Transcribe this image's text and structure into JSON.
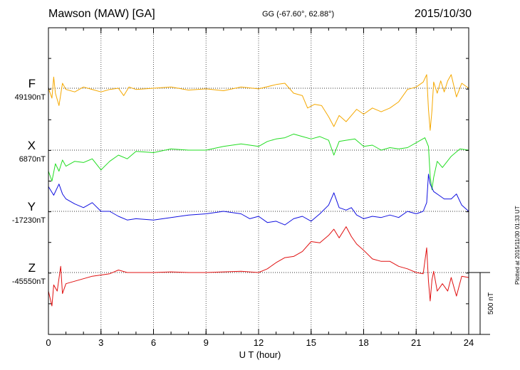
{
  "header": {
    "station": "Mawson (MAW)  [GA]",
    "coords": "GG (-67.60°,  62.88°)",
    "date": "2015/10/30"
  },
  "footer": {
    "credit": "Plotted at 2015/11/30 01:33 UT"
  },
  "colors": {
    "F": "#f5a800",
    "X": "#22dd22",
    "Y": "#1010e0",
    "Z": "#e01010"
  },
  "chart_data": {
    "type": "line",
    "title": "Mawson (MAW)  [GA]",
    "xlabel": "U T (hour)",
    "ylabel": "",
    "xlim": [
      0,
      24
    ],
    "xticks": [
      "0",
      "3",
      "6",
      "9",
      "12",
      "15",
      "18",
      "21",
      "24"
    ],
    "grid": true,
    "scale_bar": {
      "label": "500 nT",
      "value_nT": 500
    },
    "series": [
      {
        "name": "F",
        "baseline_label": "49190nT",
        "baseline": 49190,
        "x": [
          0,
          0.2,
          0.3,
          0.4,
          0.6,
          0.8,
          1,
          1.5,
          2,
          3,
          3.5,
          4,
          4.3,
          4.6,
          5,
          6,
          7,
          8,
          9,
          10,
          11,
          12,
          13,
          13.5,
          14,
          14.5,
          14.8,
          15.2,
          15.6,
          16,
          16.3,
          16.6,
          17,
          17.3,
          17.6,
          18,
          18.5,
          19,
          19.5,
          20,
          20.5,
          21,
          21.4,
          21.6,
          21.7,
          21.8,
          21.9,
          22,
          22.2,
          22.4,
          22.6,
          22.8,
          23,
          23.3,
          23.6,
          24
        ],
        "values": [
          49190,
          49110,
          49280,
          49150,
          49050,
          49230,
          49180,
          49160,
          49200,
          49160,
          49180,
          49190,
          49130,
          49200,
          49180,
          49190,
          49200,
          49175,
          49185,
          49170,
          49200,
          49185,
          49220,
          49230,
          49150,
          49130,
          49030,
          49060,
          49050,
          48960,
          48880,
          48970,
          48920,
          48970,
          49020,
          48980,
          49030,
          49000,
          49030,
          49080,
          49180,
          49200,
          49240,
          49300,
          49020,
          48850,
          49010,
          49240,
          49150,
          49250,
          49160,
          49250,
          49300,
          49120,
          49230,
          49190
        ]
      },
      {
        "name": "X",
        "baseline_label": "6870nT",
        "baseline": 6870,
        "x": [
          0,
          0.2,
          0.4,
          0.6,
          0.8,
          1,
          1.5,
          2,
          2.5,
          3,
          3.5,
          4,
          4.5,
          5,
          6,
          7,
          8,
          9,
          10,
          11,
          12,
          12.5,
          13,
          13.5,
          14,
          14.5,
          15,
          15.5,
          16,
          16.3,
          16.6,
          17,
          17.5,
          18,
          18.5,
          19,
          19.5,
          20,
          20.5,
          21,
          21.5,
          21.7,
          21.8,
          21.9,
          22,
          22.2,
          22.5,
          23,
          23.5,
          24
        ],
        "values": [
          6700,
          6620,
          6760,
          6700,
          6790,
          6740,
          6780,
          6770,
          6800,
          6710,
          6780,
          6830,
          6800,
          6860,
          6850,
          6880,
          6870,
          6870,
          6900,
          6920,
          6900,
          6940,
          6960,
          6970,
          7000,
          6980,
          6960,
          6980,
          6950,
          6830,
          6940,
          6950,
          6960,
          6900,
          6910,
          6870,
          6890,
          6880,
          6890,
          6930,
          6970,
          6900,
          6660,
          6550,
          6650,
          6780,
          6730,
          6820,
          6880,
          6870
        ]
      },
      {
        "name": "Y",
        "baseline_label": "-17230nT",
        "baseline": -17230,
        "x": [
          0,
          0.3,
          0.6,
          0.8,
          1,
          1.5,
          2,
          2.5,
          3,
          3.5,
          4,
          4.5,
          5,
          6,
          7,
          8,
          9,
          10,
          11,
          11.5,
          12,
          12.5,
          13,
          13.5,
          14,
          14.5,
          15,
          15.5,
          16,
          16.3,
          16.6,
          17,
          17.3,
          17.6,
          18,
          18.5,
          19,
          19.5,
          20,
          20.5,
          21,
          21.4,
          21.6,
          21.7,
          21.8,
          22,
          22.3,
          22.6,
          23,
          23.3,
          23.6,
          24
        ],
        "values": [
          -17030,
          -17100,
          -17010,
          -17090,
          -17130,
          -17170,
          -17200,
          -17160,
          -17230,
          -17230,
          -17270,
          -17300,
          -17290,
          -17300,
          -17280,
          -17260,
          -17250,
          -17230,
          -17250,
          -17290,
          -17270,
          -17320,
          -17310,
          -17340,
          -17290,
          -17270,
          -17310,
          -17250,
          -17180,
          -17080,
          -17200,
          -17220,
          -17200,
          -17260,
          -17290,
          -17270,
          -17280,
          -17260,
          -17280,
          -17230,
          -17250,
          -17230,
          -17160,
          -16930,
          -17010,
          -17070,
          -17100,
          -17130,
          -17130,
          -17090,
          -17180,
          -17230
        ]
      },
      {
        "name": "Z",
        "baseline_label": "-45550nT",
        "baseline": -45550,
        "x": [
          0,
          0.2,
          0.3,
          0.5,
          0.7,
          0.8,
          1,
          1.5,
          2,
          2.5,
          3,
          3.5,
          4,
          4.5,
          5,
          6,
          7,
          8,
          9,
          10,
          11,
          12,
          12.5,
          13,
          13.5,
          14,
          14.5,
          15,
          15.5,
          16,
          16.3,
          16.6,
          17,
          17.3,
          17.6,
          18,
          18.5,
          19,
          19.5,
          20,
          20.5,
          21,
          21.4,
          21.6,
          21.7,
          21.8,
          21.9,
          22,
          22.2,
          22.5,
          22.8,
          23,
          23.3,
          23.6,
          24
        ],
        "values": [
          -45700,
          -45820,
          -45650,
          -45700,
          -45500,
          -45720,
          -45640,
          -45620,
          -45600,
          -45580,
          -45570,
          -45560,
          -45530,
          -45550,
          -45550,
          -45550,
          -45545,
          -45550,
          -45550,
          -45545,
          -45540,
          -45550,
          -45520,
          -45470,
          -45430,
          -45420,
          -45380,
          -45300,
          -45310,
          -45250,
          -45200,
          -45270,
          -45180,
          -45260,
          -45320,
          -45370,
          -45440,
          -45460,
          -45460,
          -45500,
          -45520,
          -45550,
          -45560,
          -45350,
          -45620,
          -45780,
          -45610,
          -45540,
          -45700,
          -45640,
          -45700,
          -45590,
          -45740,
          -45580,
          -45590
        ]
      }
    ]
  }
}
